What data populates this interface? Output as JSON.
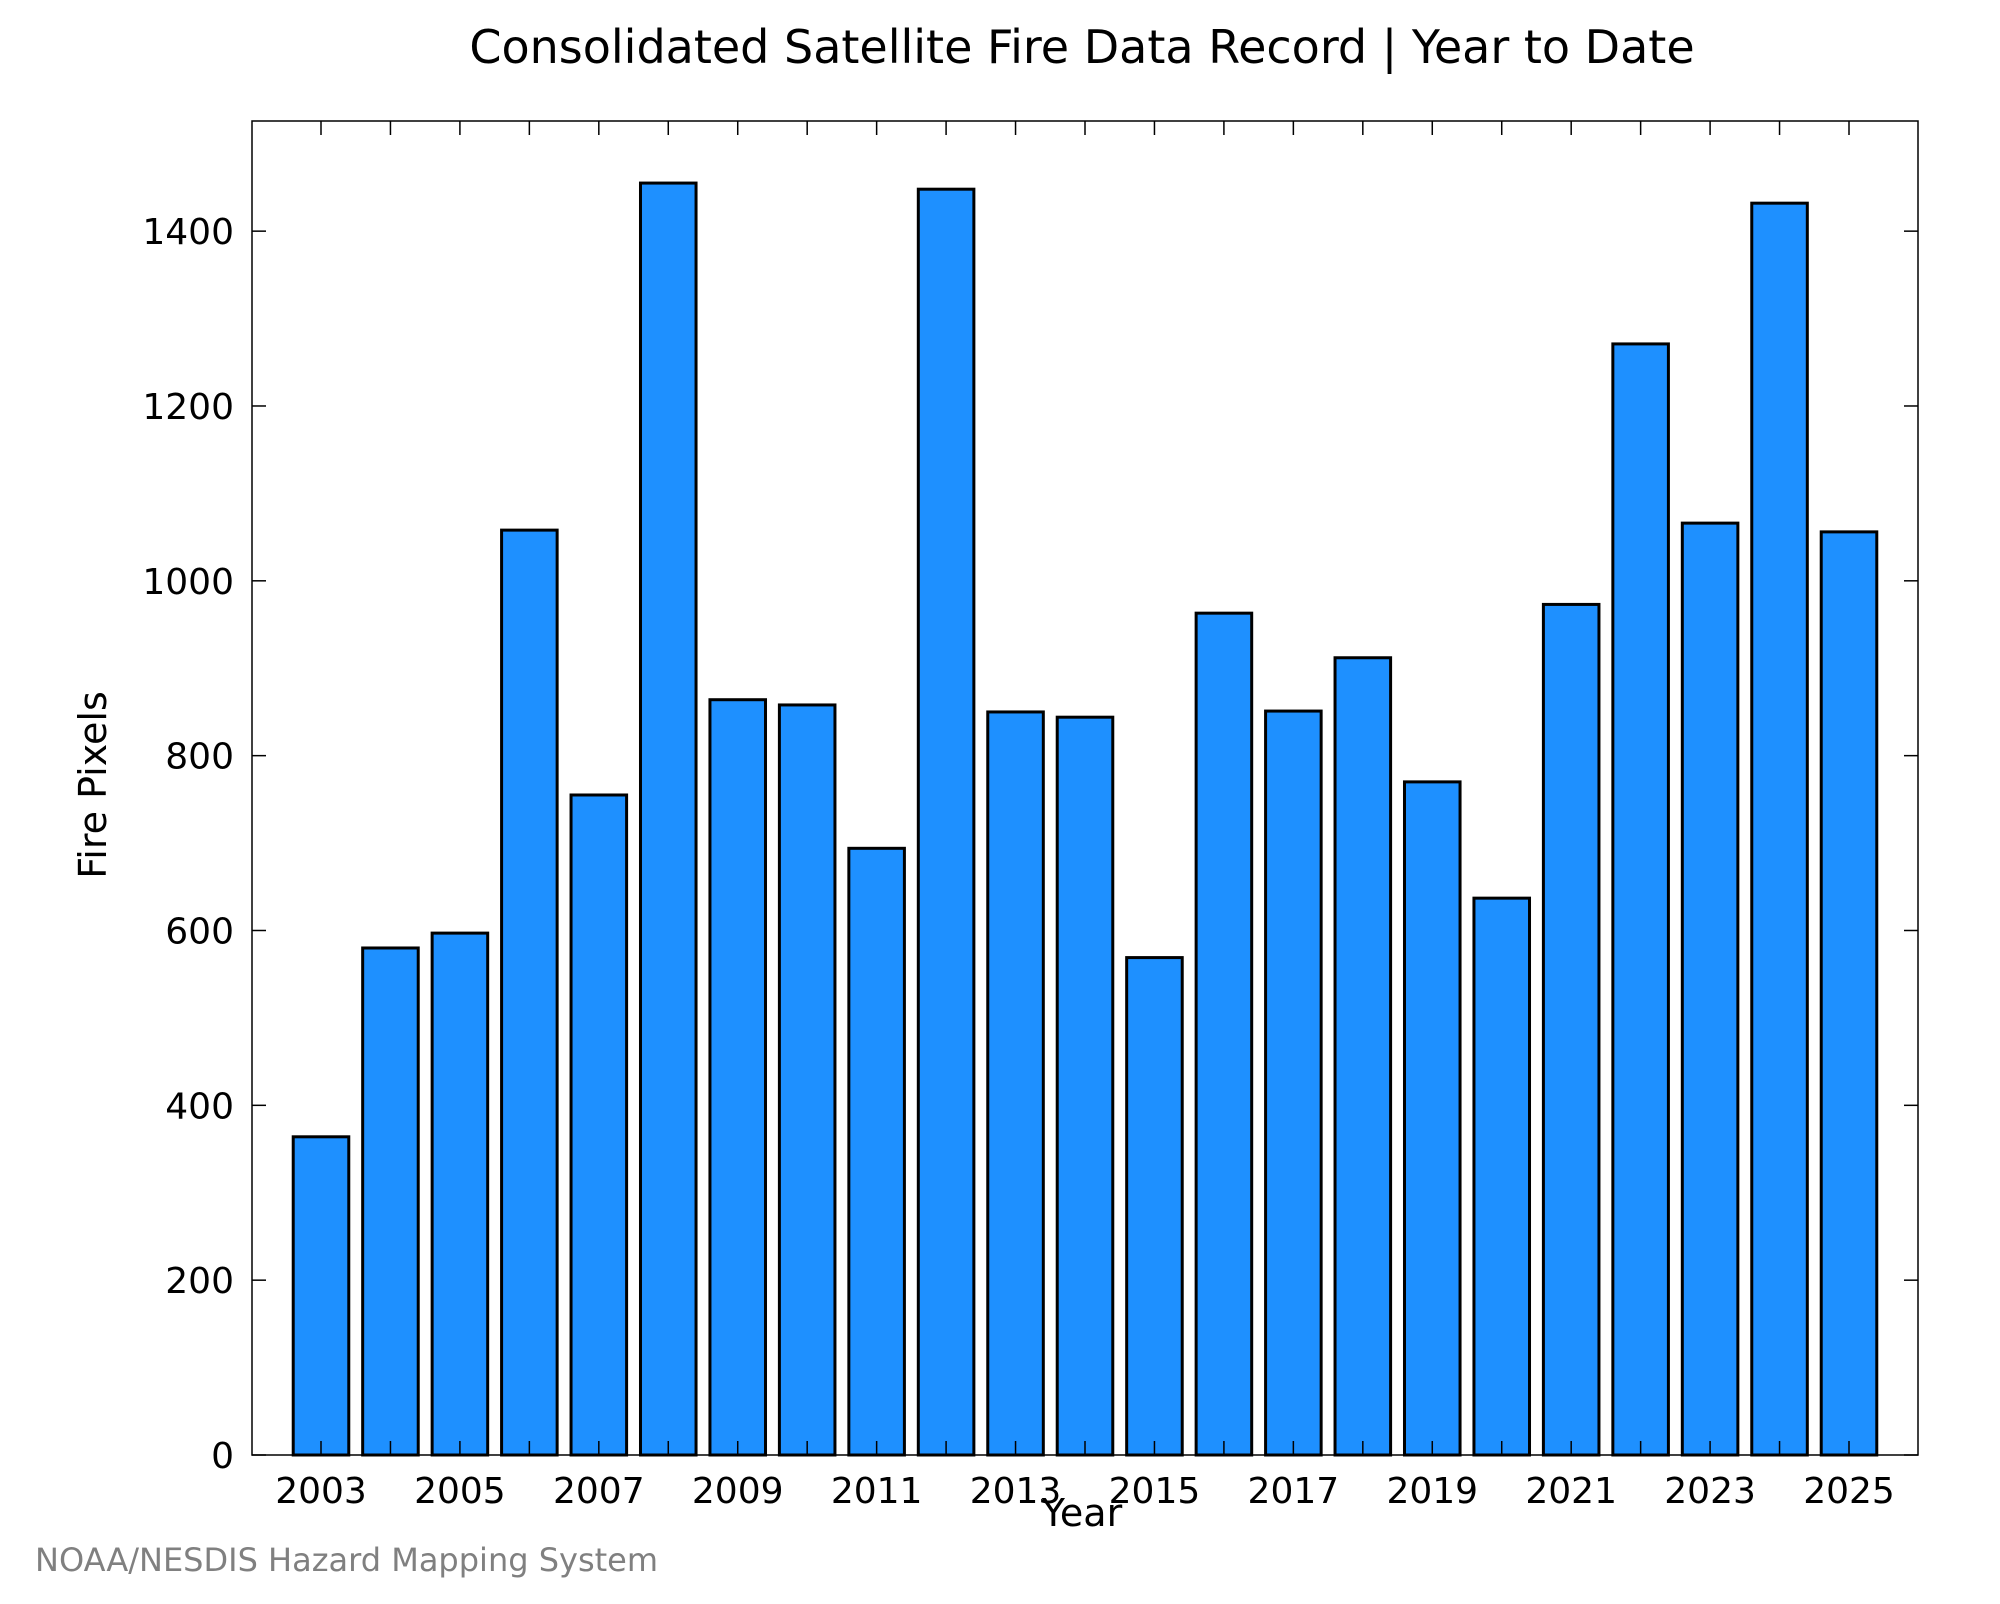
{
  "chart_data": {
    "type": "bar",
    "title": "Consolidated Satellite Fire Data Record | Year to Date",
    "xlabel": "Year",
    "ylabel": "Fire Pixels",
    "categories": [
      "2003",
      "2004",
      "2005",
      "2006",
      "2007",
      "2008",
      "2009",
      "2010",
      "2011",
      "2012",
      "2013",
      "2014",
      "2015",
      "2016",
      "2017",
      "2018",
      "2019",
      "2020",
      "2021",
      "2022",
      "2023",
      "2024",
      "2025"
    ],
    "values": [
      364,
      580,
      597,
      1058,
      755,
      1455,
      864,
      858,
      694,
      1448,
      850,
      844,
      569,
      963,
      851,
      912,
      770,
      637,
      973,
      1271,
      1066,
      1432,
      1056
    ],
    "x_tick_labels": [
      "2003",
      "2005",
      "2007",
      "2009",
      "2011",
      "2013",
      "2015",
      "2017",
      "2019",
      "2021",
      "2023",
      "2025"
    ],
    "y_ticks": [
      0,
      200,
      400,
      600,
      800,
      1000,
      1200,
      1400
    ],
    "ylim": [
      0,
      1526
    ],
    "grid": false,
    "bar_color": "#1e90ff",
    "bar_edge_color": "#000000"
  },
  "footer": {
    "credit": "NOAA/NESDIS Hazard Mapping System"
  }
}
